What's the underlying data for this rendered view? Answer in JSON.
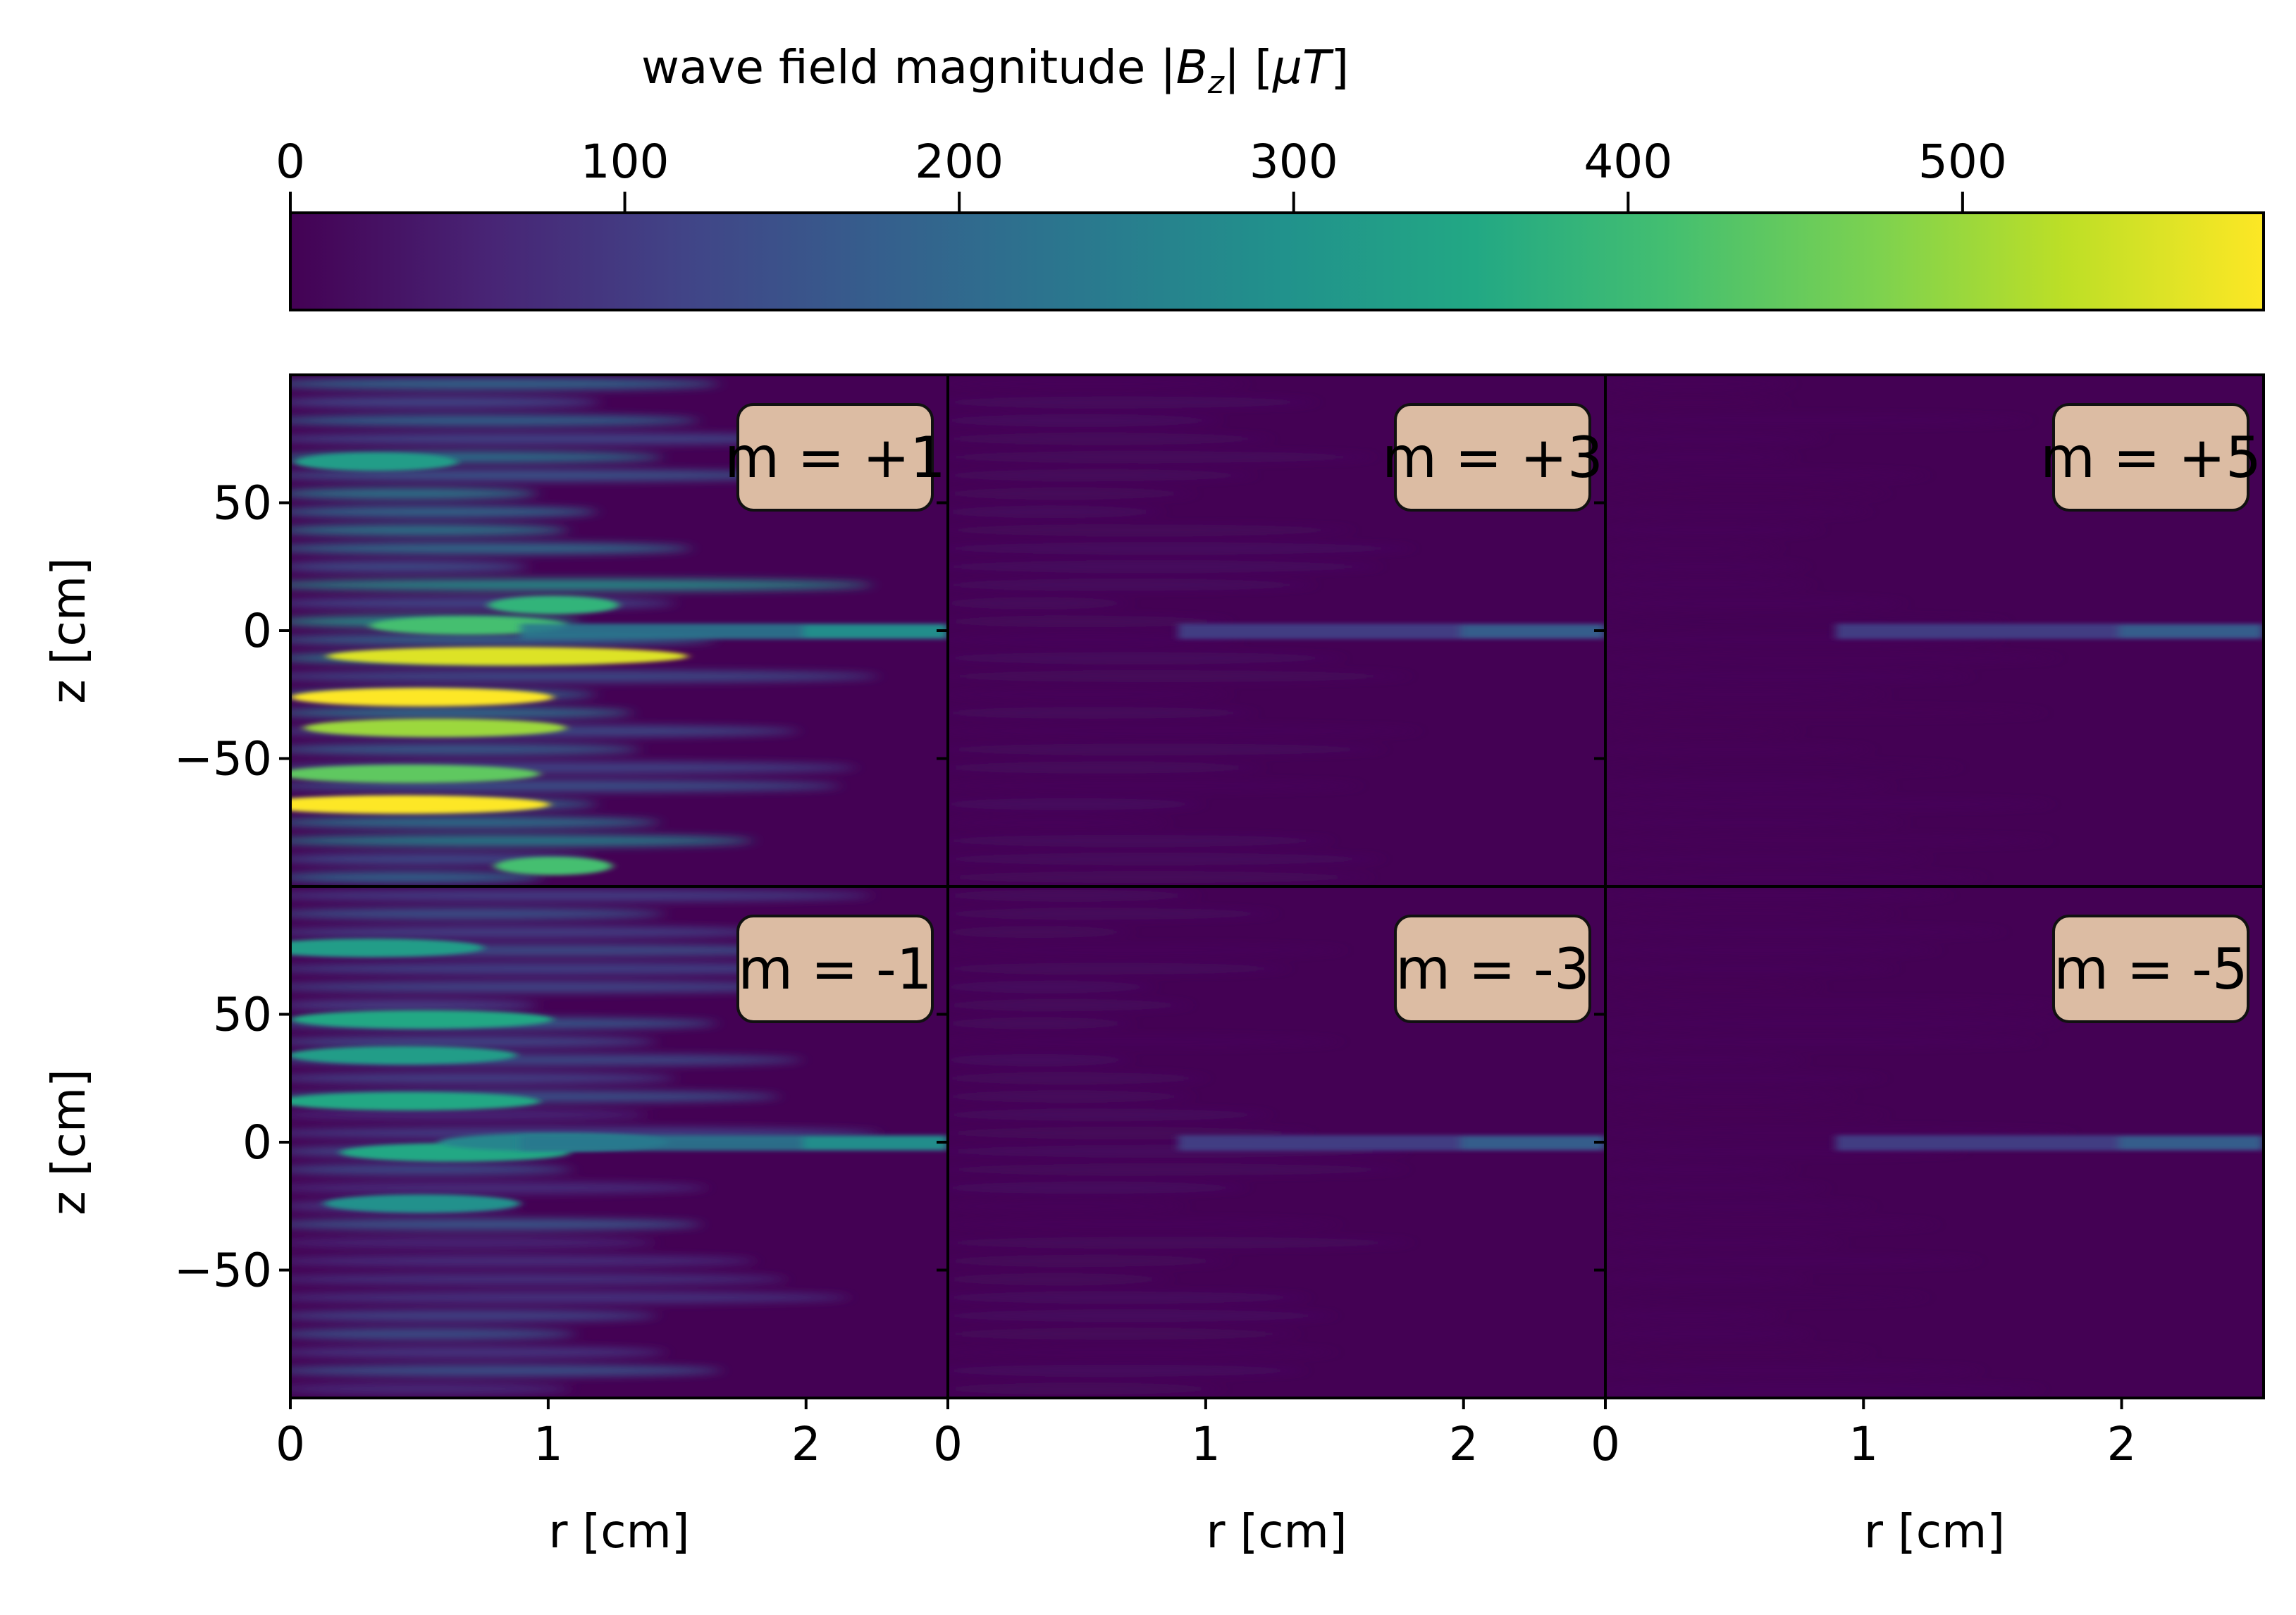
{
  "chart_data": {
    "type": "heatmap",
    "colorbar": {
      "label_prefix": "wave field magnitude |",
      "label_main": "B",
      "label_sub": "z",
      "label_suffix": "| [",
      "label_mu": "μ",
      "label_unit": "T",
      "label_close": "]",
      "range": [
        0,
        590
      ],
      "ticks": [
        0,
        100,
        200,
        300,
        400,
        500
      ],
      "colormap": "viridis",
      "orientation": "horizontal",
      "location": "top"
    },
    "xlabel": "r [cm]",
    "ylabel": "z [cm]",
    "xlim": [
      0,
      2.55
    ],
    "ylim": [
      -100,
      100
    ],
    "xticks": [
      0,
      1,
      2
    ],
    "yticks": [
      50,
      0,
      -50
    ],
    "ytick_labels": [
      "50",
      "0",
      "−50"
    ],
    "panels": [
      {
        "label": "m = +1",
        "m": 1,
        "intensity": "high"
      },
      {
        "label": "m = +3",
        "m": 3,
        "intensity": "low"
      },
      {
        "label": "m = +5",
        "m": 5,
        "intensity": "very low"
      },
      {
        "label": "m = -1",
        "m": -1,
        "intensity": "medium"
      },
      {
        "label": "m = -3",
        "m": -3,
        "intensity": "low"
      },
      {
        "label": "m = -5",
        "m": -5,
        "intensity": "very low"
      }
    ]
  },
  "colors": {
    "label_box_fill": "#dcbca3",
    "background_low": "#440154"
  }
}
